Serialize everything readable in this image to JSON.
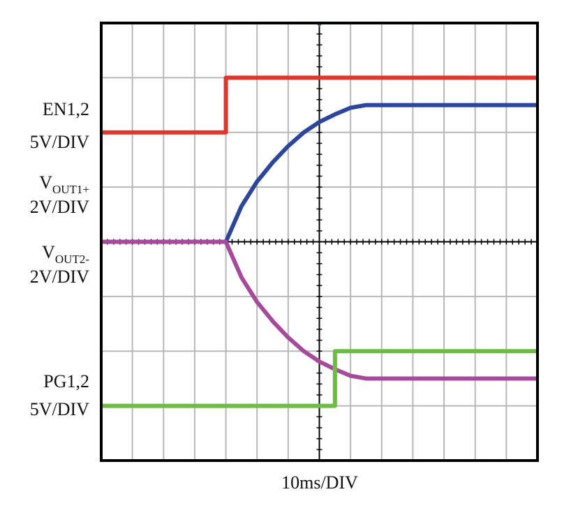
{
  "chart_data": {
    "type": "line",
    "xlabel": "10ms/DIV",
    "xlim": [
      0,
      14
    ],
    "ylim": [
      0,
      8
    ],
    "xticks": [
      0,
      1,
      2,
      3,
      4,
      5,
      6,
      7,
      8,
      9,
      10,
      11,
      12,
      13,
      14
    ],
    "yticks": [
      0,
      1,
      2,
      3,
      4,
      5,
      6,
      7,
      8
    ],
    "grid": true,
    "series": [
      {
        "name": "EN1,2",
        "scale": "5V/DIV",
        "color": "#e3342b",
        "x": [
          0,
          4,
          4,
          14
        ],
        "values": [
          6,
          6,
          7,
          7
        ]
      },
      {
        "name": "V",
        "subscript": "OUT1+",
        "scale": "2V/DIV",
        "color": "#2c469b",
        "x": [
          0,
          4,
          4.5,
          5,
          5.5,
          6,
          6.5,
          7,
          7.5,
          8,
          8.5,
          14
        ],
        "values": [
          4,
          4,
          4.65,
          5.1,
          5.45,
          5.75,
          6.0,
          6.19,
          6.33,
          6.45,
          6.5,
          6.5
        ]
      },
      {
        "name": "V",
        "subscript": "OUT2-",
        "scale": "2V/DIV",
        "color": "#a64b9c",
        "x": [
          0,
          4,
          4.5,
          5,
          5.5,
          6,
          6.5,
          7,
          7.5,
          8,
          8.5,
          14
        ],
        "values": [
          4,
          4,
          3.35,
          2.9,
          2.55,
          2.25,
          2.0,
          1.81,
          1.67,
          1.55,
          1.5,
          1.5
        ]
      },
      {
        "name": "PG1,2",
        "scale": "5V/DIV",
        "color": "#6dbd45",
        "x": [
          0,
          7.5,
          7.5,
          14
        ],
        "values": [
          1,
          1,
          2,
          2
        ]
      }
    ]
  }
}
